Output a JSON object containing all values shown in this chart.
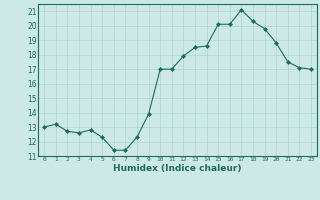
{
  "x": [
    0,
    1,
    2,
    3,
    4,
    5,
    6,
    7,
    8,
    9,
    10,
    11,
    12,
    13,
    14,
    15,
    16,
    17,
    18,
    19,
    20,
    21,
    22,
    23
  ],
  "y": [
    13,
    13.2,
    12.7,
    12.6,
    12.8,
    12.3,
    11.4,
    11.4,
    12.3,
    13.9,
    17.0,
    17.0,
    17.9,
    18.5,
    18.6,
    20.1,
    20.1,
    21.1,
    20.3,
    19.8,
    18.8,
    17.5,
    17.1,
    17.0
  ],
  "xlim": [
    -0.5,
    23.5
  ],
  "ylim": [
    11,
    21.5
  ],
  "yticks": [
    11,
    12,
    13,
    14,
    15,
    16,
    17,
    18,
    19,
    20,
    21
  ],
  "xticks": [
    0,
    1,
    2,
    3,
    4,
    5,
    6,
    7,
    8,
    9,
    10,
    11,
    12,
    13,
    14,
    15,
    16,
    17,
    18,
    19,
    20,
    21,
    22,
    23
  ],
  "xlabel": "Humidex (Indice chaleur)",
  "line_color": "#1e6b5e",
  "marker_color": "#1e6b5e",
  "bg_color": "#cce9e6",
  "grid_color": "#aed4d0",
  "tick_label_color": "#1e6b5e",
  "axis_color": "#1e6b5e",
  "xlabel_color": "#1e6b5e"
}
